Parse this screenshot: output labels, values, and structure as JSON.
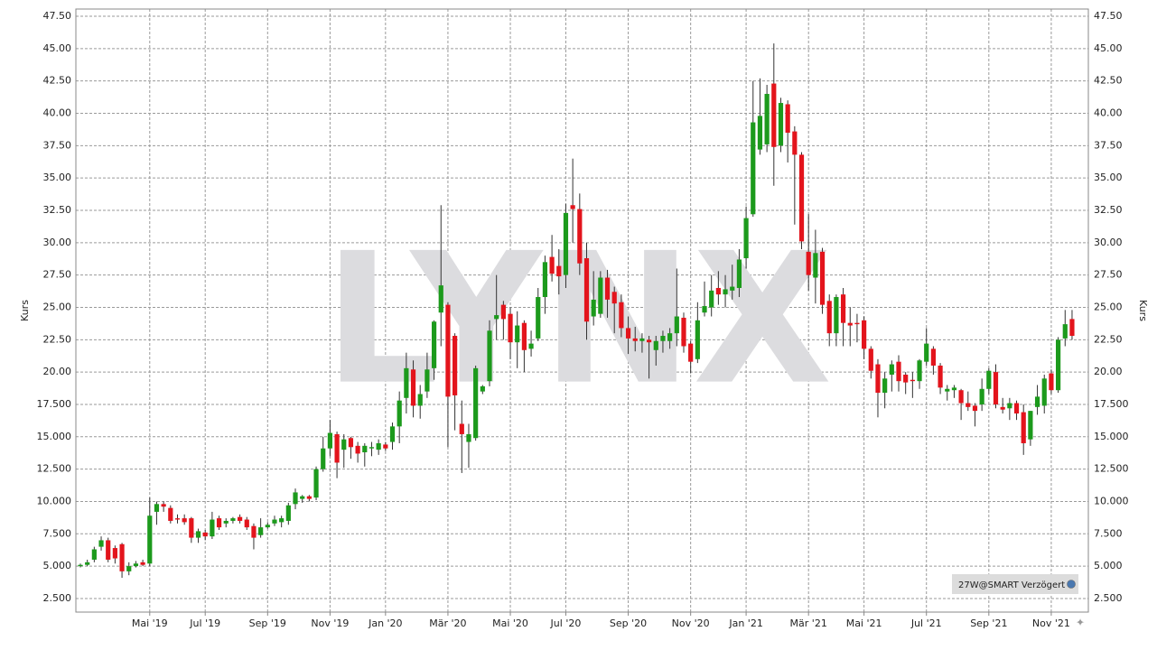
{
  "chart_data": {
    "type": "candlestick",
    "y_axis_label": "Kurs",
    "watermark": "LYNX",
    "badge": "27W@SMART Verzögert",
    "up_color": "#1c9a1c",
    "down_color": "#e3141c",
    "grid": true,
    "ylim": [
      1.45,
      48.06
    ],
    "yticks": [
      {
        "value": 2.5,
        "label": "2.500"
      },
      {
        "value": 5,
        "label": "5.000"
      },
      {
        "value": 7.5,
        "label": "7.500"
      },
      {
        "value": 10,
        "label": "10.000"
      },
      {
        "value": 12.5,
        "label": "12.500"
      },
      {
        "value": 15,
        "label": "15.000"
      },
      {
        "value": 17.5,
        "label": "17.500"
      },
      {
        "value": 20,
        "label": "20.00"
      },
      {
        "value": 22.5,
        "label": "22.50"
      },
      {
        "value": 25,
        "label": "25.00"
      },
      {
        "value": 27.5,
        "label": "27.50"
      },
      {
        "value": 30,
        "label": "30.00"
      },
      {
        "value": 32.5,
        "label": "32.50"
      },
      {
        "value": 35,
        "label": "35.00"
      },
      {
        "value": 37.5,
        "label": "37.50"
      },
      {
        "value": 40,
        "label": "40.00"
      },
      {
        "value": 42.5,
        "label": "42.50"
      },
      {
        "value": 45,
        "label": "45.00"
      },
      {
        "value": 47.5,
        "label": "47.50"
      }
    ],
    "categories": [
      null,
      null,
      null,
      null,
      null,
      null,
      null,
      null,
      null,
      null,
      "Mai '19",
      null,
      null,
      null,
      null,
      null,
      null,
      null,
      "Jul '19",
      null,
      null,
      null,
      null,
      null,
      null,
      null,
      null,
      "Sep '19",
      null,
      null,
      null,
      null,
      null,
      null,
      null,
      null,
      "Nov '19",
      null,
      null,
      null,
      null,
      null,
      null,
      null,
      "Jan '20",
      null,
      null,
      null,
      null,
      null,
      null,
      null,
      null,
      "Mär '20",
      null,
      null,
      null,
      null,
      null,
      null,
      null,
      null,
      "Mai '20",
      null,
      null,
      null,
      null,
      null,
      null,
      null,
      "Jul '20",
      null,
      null,
      null,
      null,
      null,
      null,
      null,
      null,
      "Sep '20",
      null,
      null,
      null,
      null,
      null,
      null,
      null,
      null,
      "Nov '20",
      null,
      null,
      null,
      null,
      null,
      null,
      null,
      "Jan '21",
      null,
      null,
      null,
      null,
      null,
      null,
      null,
      null,
      "Mär '21",
      null,
      null,
      null,
      null,
      null,
      null,
      null,
      "Mai '21",
      null,
      null,
      null,
      null,
      null,
      null,
      null,
      null,
      "Jul '21",
      null,
      null,
      null,
      null,
      null,
      null,
      null,
      null,
      "Sep '21",
      null,
      null,
      null,
      null,
      null,
      null,
      null,
      null,
      "Nov '21",
      null,
      null,
      null
    ],
    "open": [
      5.0,
      5.1,
      5.5,
      6.5,
      7.0,
      6.4,
      6.7,
      4.6,
      5.0,
      5.3,
      5.2,
      9.2,
      9.8,
      9.5,
      8.7,
      8.7,
      8.7,
      7.2,
      7.6,
      7.3,
      8.7,
      8.3,
      8.5,
      8.8,
      8.6,
      8.1,
      7.4,
      8.0,
      8.3,
      8.4,
      8.5,
      9.8,
      10.2,
      10.4,
      10.3,
      12.5,
      14.1,
      15.2,
      14.0,
      14.9,
      14.3,
      13.8,
      14.1,
      14.0,
      14.4,
      14.6,
      15.8,
      18.0,
      20.2,
      17.4,
      18.5,
      20.3,
      24.6,
      25.2,
      22.8,
      16.0,
      14.6,
      14.9,
      18.5,
      19.3,
      24.1,
      25.2,
      24.5,
      22.3,
      23.8,
      21.8,
      22.6,
      25.8,
      28.9,
      28.2,
      27.5,
      32.9,
      32.6,
      28.8,
      24.3,
      24.5,
      27.3,
      26.2,
      25.4,
      23.4,
      22.6,
      22.4,
      22.5,
      21.7,
      22.4,
      22.4,
      23.0,
      24.2,
      22.2,
      21.0,
      24.6,
      25.0,
      26.5,
      26.0,
      26.3,
      26.5,
      28.8,
      32.2,
      37.2,
      37.6,
      42.3,
      37.5,
      40.7,
      38.6,
      36.8,
      29.3,
      27.3,
      29.3,
      25.5,
      23.0,
      26.0,
      23.8,
      23.8,
      24.0,
      21.8,
      20.6,
      18.4,
      19.8,
      20.8,
      19.8,
      19.4,
      19.3,
      20.8,
      21.8,
      20.5,
      18.5,
      18.6,
      18.6,
      17.6,
      17.4,
      17.5,
      18.7,
      20.0,
      17.3,
      17.2,
      17.6,
      16.9,
      14.8,
      17.3,
      17.4,
      19.9,
      18.6,
      22.6,
      24.1
    ],
    "high": [
      5.2,
      5.5,
      6.5,
      7.3,
      7.2,
      6.6,
      6.8,
      5.3,
      5.4,
      5.5,
      10.3,
      10.0,
      10.0,
      9.7,
      9.0,
      9.0,
      8.8,
      7.9,
      7.8,
      9.2,
      8.9,
      8.7,
      8.8,
      9.0,
      8.8,
      8.3,
      8.7,
      8.4,
      8.9,
      8.9,
      9.9,
      11.0,
      10.5,
      10.5,
      12.7,
      15.0,
      16.3,
      15.4,
      15.2,
      15.0,
      14.6,
      14.5,
      14.6,
      14.8,
      14.6,
      16.1,
      18.5,
      21.5,
      20.9,
      19.0,
      21.5,
      24.0,
      32.9,
      25.4,
      23.0,
      17.8,
      16.0,
      20.5,
      19.0,
      24.0,
      27.5,
      25.5,
      25.0,
      24.7,
      24.0,
      23.2,
      26.5,
      29.0,
      30.6,
      29.5,
      33.0,
      36.5,
      33.8,
      30.0,
      27.8,
      27.8,
      27.9,
      26.6,
      26.0,
      24.3,
      23.5,
      23.0,
      22.8,
      22.8,
      23.2,
      23.4,
      28.0,
      24.6,
      22.4,
      25.4,
      27.0,
      27.5,
      27.8,
      27.5,
      28.3,
      29.5,
      32.8,
      42.5,
      42.7,
      42.2,
      45.4,
      41.2,
      41.0,
      39.0,
      37.0,
      32.2,
      31.0,
      29.6,
      26.0,
      26.0,
      26.5,
      25.0,
      24.5,
      24.3,
      22.0,
      21.0,
      20.0,
      20.9,
      21.3,
      20.0,
      20.0,
      21.0,
      23.4,
      22.0,
      20.7,
      19.0,
      19.0,
      18.7,
      18.5,
      17.6,
      19.5,
      20.3,
      20.6,
      18.0,
      18.0,
      17.8,
      17.5,
      17.0,
      19.0,
      19.8,
      20.2,
      22.7,
      24.8,
      24.8
    ],
    "low": [
      4.9,
      5.0,
      5.3,
      6.2,
      5.3,
      5.2,
      4.1,
      4.3,
      4.9,
      5.0,
      5.0,
      8.2,
      9.2,
      8.3,
      8.3,
      8.2,
      6.8,
      6.8,
      7.0,
      7.1,
      7.8,
      8.0,
      8.3,
      8.3,
      7.8,
      6.3,
      7.2,
      7.9,
      8.1,
      8.0,
      8.2,
      9.4,
      9.9,
      10.0,
      10.1,
      12.3,
      13.5,
      11.8,
      12.6,
      13.3,
      13.0,
      12.7,
      13.5,
      13.6,
      13.9,
      14.0,
      14.5,
      16.8,
      16.5,
      16.4,
      18.0,
      19.4,
      22.0,
      14.2,
      15.5,
      12.2,
      12.6,
      14.7,
      18.3,
      18.9,
      22.5,
      22.5,
      21.0,
      20.3,
      20.0,
      21.2,
      22.4,
      24.5,
      27.0,
      26.0,
      26.5,
      30.0,
      27.5,
      22.5,
      23.6,
      24.2,
      24.2,
      23.0,
      22.7,
      21.4,
      21.6,
      21.5,
      19.5,
      20.5,
      21.5,
      21.8,
      22.0,
      21.5,
      19.9,
      20.7,
      24.3,
      24.3,
      25.2,
      25.0,
      25.6,
      25.8,
      28.0,
      32.0,
      36.8,
      37.0,
      34.4,
      37.0,
      36.2,
      31.4,
      29.5,
      26.3,
      25.3,
      24.5,
      22.0,
      22.0,
      22.0,
      22.0,
      22.3,
      21.0,
      19.5,
      16.5,
      17.2,
      18.5,
      18.5,
      18.3,
      18.0,
      18.7,
      20.5,
      19.8,
      18.3,
      17.8,
      18.0,
      16.3,
      17.0,
      15.8,
      17.0,
      18.3,
      17.2,
      16.8,
      16.3,
      16.3,
      13.6,
      14.3,
      16.7,
      16.8,
      18.3,
      18.4,
      22.0,
      22.5
    ],
    "close": [
      5.1,
      5.3,
      6.3,
      7.0,
      5.5,
      5.6,
      4.6,
      5.0,
      5.2,
      5.1,
      8.9,
      9.8,
      9.6,
      8.5,
      8.6,
      8.4,
      7.2,
      7.7,
      7.3,
      8.6,
      8.0,
      8.5,
      8.7,
      8.5,
      8.0,
      7.2,
      8.0,
      8.2,
      8.6,
      8.7,
      9.7,
      10.7,
      10.4,
      10.2,
      12.5,
      14.1,
      15.3,
      13.0,
      14.8,
      14.2,
      13.7,
      14.3,
      14.2,
      14.5,
      14.1,
      15.8,
      17.8,
      20.3,
      17.4,
      18.3,
      20.2,
      23.9,
      26.7,
      18.1,
      18.2,
      15.2,
      15.2,
      20.3,
      18.9,
      23.2,
      24.4,
      24.1,
      22.3,
      23.6,
      21.7,
      22.2,
      25.8,
      28.5,
      27.6,
      27.4,
      32.3,
      32.6,
      28.4,
      23.9,
      25.6,
      27.3,
      25.6,
      25.3,
      23.4,
      22.6,
      22.4,
      22.6,
      22.3,
      22.4,
      22.8,
      23.0,
      24.3,
      22.0,
      20.8,
      24.0,
      25.1,
      26.3,
      26.0,
      26.4,
      26.6,
      28.7,
      31.9,
      39.3,
      39.8,
      41.5,
      37.4,
      40.8,
      38.5,
      36.8,
      30.1,
      27.5,
      29.2,
      25.2,
      23.0,
      25.8,
      23.8,
      23.6,
      23.7,
      21.8,
      20.1,
      18.4,
      19.5,
      20.6,
      19.3,
      19.2,
      19.3,
      20.9,
      22.2,
      20.5,
      18.8,
      18.7,
      18.8,
      17.6,
      17.3,
      17.0,
      18.7,
      20.1,
      17.5,
      17.1,
      17.6,
      16.8,
      14.5,
      17.0,
      18.1,
      19.5,
      18.6,
      22.5,
      23.7,
      22.8
    ]
  }
}
